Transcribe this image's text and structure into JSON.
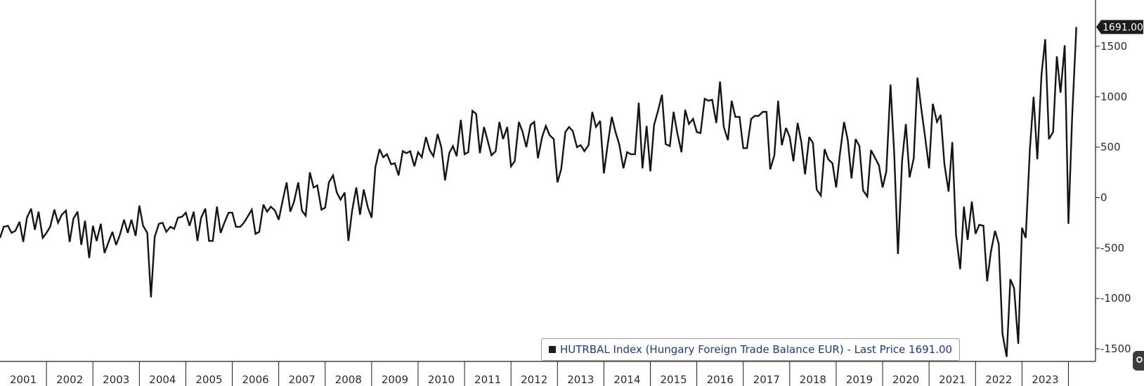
{
  "colors": {
    "line": "#141414",
    "axis": "#1c1c1c",
    "last_price_bg": "#1c1c1c",
    "legend_swatch": "#1c1c1c",
    "legend_text": "#1f3a7a",
    "background": "#ffffff"
  },
  "legend": {
    "text": "HUTRBAL Index (Hungary Foreign Trade Balance EUR) - Last Price 1691.00"
  },
  "chart_data": {
    "type": "line",
    "title": "",
    "xlabel": "",
    "ylabel": "",
    "grid": false,
    "legend_position": "bottom-center",
    "y_axis_position": "right",
    "ylim": [
      -1700,
      1950
    ],
    "y_ticks": [
      -1500,
      -1000,
      -500,
      0,
      500,
      1000,
      1500
    ],
    "y_tick_labels": [
      "-1500",
      "-1000",
      "-500",
      "0",
      "500",
      "1000",
      "1500"
    ],
    "x_range": [
      2001.0,
      2024.25
    ],
    "x_ticks": [
      2001,
      2002,
      2003,
      2004,
      2005,
      2006,
      2007,
      2008,
      2009,
      2010,
      2011,
      2012,
      2013,
      2014,
      2015,
      2016,
      2017,
      2018,
      2019,
      2020,
      2021,
      2022,
      2023
    ],
    "x_tick_labels": [
      "2001",
      "2002",
      "2003",
      "2004",
      "2005",
      "2006",
      "2007",
      "2008",
      "2009",
      "2010",
      "2011",
      "2012",
      "2013",
      "2014",
      "2015",
      "2016",
      "2017",
      "2018",
      "2019",
      "2020",
      "2021",
      "2022",
      "2023"
    ],
    "last_price_label": "1691.00",
    "series": [
      {
        "name": "HUTRBAL Index (Hungary Foreign Trade Balance EUR)",
        "points": [
          [
            2001.0,
            -400
          ],
          [
            2001.08,
            -290
          ],
          [
            2001.17,
            -280
          ],
          [
            2001.25,
            -350
          ],
          [
            2001.33,
            -330
          ],
          [
            2001.42,
            -240
          ],
          [
            2001.5,
            -440
          ],
          [
            2001.58,
            -200
          ],
          [
            2001.67,
            -110
          ],
          [
            2001.75,
            -320
          ],
          [
            2001.83,
            -140
          ],
          [
            2001.92,
            -400
          ],
          [
            2002.0,
            -350
          ],
          [
            2002.08,
            -290
          ],
          [
            2002.17,
            -120
          ],
          [
            2002.25,
            -250
          ],
          [
            2002.33,
            -170
          ],
          [
            2002.42,
            -130
          ],
          [
            2002.5,
            -440
          ],
          [
            2002.58,
            -210
          ],
          [
            2002.67,
            -140
          ],
          [
            2002.75,
            -470
          ],
          [
            2002.83,
            -230
          ],
          [
            2002.92,
            -600
          ],
          [
            2003.0,
            -280
          ],
          [
            2003.08,
            -430
          ],
          [
            2003.17,
            -260
          ],
          [
            2003.25,
            -550
          ],
          [
            2003.33,
            -450
          ],
          [
            2003.42,
            -340
          ],
          [
            2003.5,
            -470
          ],
          [
            2003.58,
            -370
          ],
          [
            2003.67,
            -220
          ],
          [
            2003.75,
            -350
          ],
          [
            2003.83,
            -220
          ],
          [
            2003.92,
            -380
          ],
          [
            2004.0,
            -80
          ],
          [
            2004.08,
            -280
          ],
          [
            2004.17,
            -350
          ],
          [
            2004.25,
            -990
          ],
          [
            2004.33,
            -390
          ],
          [
            2004.42,
            -260
          ],
          [
            2004.5,
            -250
          ],
          [
            2004.58,
            -340
          ],
          [
            2004.67,
            -290
          ],
          [
            2004.75,
            -310
          ],
          [
            2004.83,
            -200
          ],
          [
            2004.92,
            -190
          ],
          [
            2005.0,
            -150
          ],
          [
            2005.08,
            -280
          ],
          [
            2005.17,
            -140
          ],
          [
            2005.25,
            -430
          ],
          [
            2005.33,
            -200
          ],
          [
            2005.42,
            -110
          ],
          [
            2005.5,
            -430
          ],
          [
            2005.58,
            -430
          ],
          [
            2005.67,
            -90
          ],
          [
            2005.75,
            -350
          ],
          [
            2005.83,
            -250
          ],
          [
            2005.92,
            -150
          ],
          [
            2006.0,
            -150
          ],
          [
            2006.08,
            -290
          ],
          [
            2006.17,
            -290
          ],
          [
            2006.25,
            -250
          ],
          [
            2006.33,
            -190
          ],
          [
            2006.42,
            -120
          ],
          [
            2006.5,
            -360
          ],
          [
            2006.58,
            -340
          ],
          [
            2006.67,
            -70
          ],
          [
            2006.75,
            -140
          ],
          [
            2006.83,
            -90
          ],
          [
            2006.92,
            -130
          ],
          [
            2007.0,
            -220
          ],
          [
            2007.08,
            -40
          ],
          [
            2007.17,
            150
          ],
          [
            2007.25,
            -140
          ],
          [
            2007.33,
            -40
          ],
          [
            2007.42,
            150
          ],
          [
            2007.5,
            -130
          ],
          [
            2007.58,
            -180
          ],
          [
            2007.67,
            250
          ],
          [
            2007.75,
            100
          ],
          [
            2007.83,
            120
          ],
          [
            2007.92,
            -120
          ],
          [
            2008.0,
            -100
          ],
          [
            2008.08,
            150
          ],
          [
            2008.17,
            220
          ],
          [
            2008.25,
            50
          ],
          [
            2008.33,
            -20
          ],
          [
            2008.42,
            50
          ],
          [
            2008.5,
            -430
          ],
          [
            2008.58,
            -130
          ],
          [
            2008.67,
            100
          ],
          [
            2008.75,
            -170
          ],
          [
            2008.83,
            80
          ],
          [
            2008.92,
            -100
          ],
          [
            2009.0,
            -200
          ],
          [
            2009.08,
            300
          ],
          [
            2009.17,
            480
          ],
          [
            2009.25,
            400
          ],
          [
            2009.33,
            430
          ],
          [
            2009.42,
            330
          ],
          [
            2009.5,
            340
          ],
          [
            2009.58,
            220
          ],
          [
            2009.67,
            460
          ],
          [
            2009.75,
            440
          ],
          [
            2009.83,
            460
          ],
          [
            2009.92,
            310
          ],
          [
            2010.0,
            450
          ],
          [
            2010.08,
            400
          ],
          [
            2010.17,
            600
          ],
          [
            2010.25,
            470
          ],
          [
            2010.33,
            410
          ],
          [
            2010.42,
            630
          ],
          [
            2010.5,
            500
          ],
          [
            2010.58,
            170
          ],
          [
            2010.67,
            440
          ],
          [
            2010.75,
            510
          ],
          [
            2010.83,
            410
          ],
          [
            2010.92,
            770
          ],
          [
            2011.0,
            430
          ],
          [
            2011.08,
            450
          ],
          [
            2011.17,
            860
          ],
          [
            2011.25,
            830
          ],
          [
            2011.33,
            440
          ],
          [
            2011.42,
            700
          ],
          [
            2011.5,
            560
          ],
          [
            2011.58,
            420
          ],
          [
            2011.67,
            460
          ],
          [
            2011.75,
            750
          ],
          [
            2011.83,
            580
          ],
          [
            2011.92,
            700
          ],
          [
            2012.0,
            310
          ],
          [
            2012.08,
            360
          ],
          [
            2012.17,
            750
          ],
          [
            2012.25,
            650
          ],
          [
            2012.33,
            500
          ],
          [
            2012.42,
            720
          ],
          [
            2012.5,
            750
          ],
          [
            2012.58,
            390
          ],
          [
            2012.67,
            600
          ],
          [
            2012.75,
            710
          ],
          [
            2012.83,
            620
          ],
          [
            2012.92,
            580
          ],
          [
            2013.0,
            150
          ],
          [
            2013.08,
            280
          ],
          [
            2013.17,
            650
          ],
          [
            2013.25,
            700
          ],
          [
            2013.33,
            660
          ],
          [
            2013.42,
            500
          ],
          [
            2013.5,
            520
          ],
          [
            2013.58,
            460
          ],
          [
            2013.67,
            520
          ],
          [
            2013.75,
            850
          ],
          [
            2013.83,
            700
          ],
          [
            2013.92,
            760
          ],
          [
            2014.0,
            240
          ],
          [
            2014.08,
            520
          ],
          [
            2014.17,
            800
          ],
          [
            2014.25,
            650
          ],
          [
            2014.33,
            530
          ],
          [
            2014.42,
            290
          ],
          [
            2014.5,
            450
          ],
          [
            2014.58,
            430
          ],
          [
            2014.67,
            430
          ],
          [
            2014.75,
            940
          ],
          [
            2014.83,
            290
          ],
          [
            2014.92,
            710
          ],
          [
            2015.0,
            260
          ],
          [
            2015.08,
            720
          ],
          [
            2015.17,
            870
          ],
          [
            2015.25,
            1020
          ],
          [
            2015.33,
            530
          ],
          [
            2015.42,
            510
          ],
          [
            2015.5,
            850
          ],
          [
            2015.58,
            640
          ],
          [
            2015.67,
            450
          ],
          [
            2015.75,
            870
          ],
          [
            2015.83,
            730
          ],
          [
            2015.92,
            780
          ],
          [
            2016.0,
            650
          ],
          [
            2016.08,
            640
          ],
          [
            2016.17,
            980
          ],
          [
            2016.25,
            960
          ],
          [
            2016.33,
            970
          ],
          [
            2016.42,
            740
          ],
          [
            2016.5,
            1150
          ],
          [
            2016.58,
            700
          ],
          [
            2016.67,
            570
          ],
          [
            2016.75,
            960
          ],
          [
            2016.83,
            800
          ],
          [
            2016.92,
            800
          ],
          [
            2017.0,
            490
          ],
          [
            2017.08,
            490
          ],
          [
            2017.17,
            780
          ],
          [
            2017.25,
            810
          ],
          [
            2017.33,
            810
          ],
          [
            2017.42,
            850
          ],
          [
            2017.5,
            850
          ],
          [
            2017.58,
            280
          ],
          [
            2017.67,
            420
          ],
          [
            2017.75,
            960
          ],
          [
            2017.83,
            520
          ],
          [
            2017.92,
            690
          ],
          [
            2018.0,
            600
          ],
          [
            2018.08,
            360
          ],
          [
            2018.17,
            740
          ],
          [
            2018.25,
            550
          ],
          [
            2018.33,
            230
          ],
          [
            2018.42,
            600
          ],
          [
            2018.5,
            540
          ],
          [
            2018.58,
            80
          ],
          [
            2018.67,
            20
          ],
          [
            2018.75,
            480
          ],
          [
            2018.83,
            380
          ],
          [
            2018.92,
            340
          ],
          [
            2019.0,
            100
          ],
          [
            2019.08,
            430
          ],
          [
            2019.17,
            750
          ],
          [
            2019.25,
            570
          ],
          [
            2019.33,
            190
          ],
          [
            2019.42,
            580
          ],
          [
            2019.5,
            510
          ],
          [
            2019.58,
            70
          ],
          [
            2019.67,
            10
          ],
          [
            2019.75,
            470
          ],
          [
            2019.83,
            400
          ],
          [
            2019.92,
            320
          ],
          [
            2020.0,
            100
          ],
          [
            2020.08,
            260
          ],
          [
            2020.17,
            1120
          ],
          [
            2020.25,
            430
          ],
          [
            2020.33,
            -560
          ],
          [
            2020.42,
            370
          ],
          [
            2020.5,
            730
          ],
          [
            2020.58,
            200
          ],
          [
            2020.67,
            390
          ],
          [
            2020.75,
            1190
          ],
          [
            2020.83,
            890
          ],
          [
            2020.92,
            580
          ],
          [
            2021.0,
            290
          ],
          [
            2021.08,
            930
          ],
          [
            2021.17,
            750
          ],
          [
            2021.25,
            820
          ],
          [
            2021.33,
            330
          ],
          [
            2021.42,
            60
          ],
          [
            2021.5,
            550
          ],
          [
            2021.58,
            -370
          ],
          [
            2021.67,
            -710
          ],
          [
            2021.75,
            -90
          ],
          [
            2021.83,
            -420
          ],
          [
            2021.92,
            -40
          ],
          [
            2022.0,
            -360
          ],
          [
            2022.08,
            -270
          ],
          [
            2022.17,
            -280
          ],
          [
            2022.25,
            -830
          ],
          [
            2022.33,
            -540
          ],
          [
            2022.42,
            -330
          ],
          [
            2022.5,
            -460
          ],
          [
            2022.58,
            -1350
          ],
          [
            2022.67,
            -1580
          ],
          [
            2022.75,
            -810
          ],
          [
            2022.83,
            -900
          ],
          [
            2022.92,
            -1450
          ],
          [
            2023.0,
            -300
          ],
          [
            2023.08,
            -400
          ],
          [
            2023.17,
            480
          ],
          [
            2023.25,
            1000
          ],
          [
            2023.33,
            380
          ],
          [
            2023.42,
            1220
          ],
          [
            2023.5,
            1570
          ],
          [
            2023.58,
            580
          ],
          [
            2023.67,
            650
          ],
          [
            2023.75,
            1400
          ],
          [
            2023.83,
            1040
          ],
          [
            2023.92,
            1510
          ],
          [
            2024.0,
            -260
          ],
          [
            2024.08,
            800
          ],
          [
            2024.17,
            1691
          ]
        ]
      }
    ]
  }
}
